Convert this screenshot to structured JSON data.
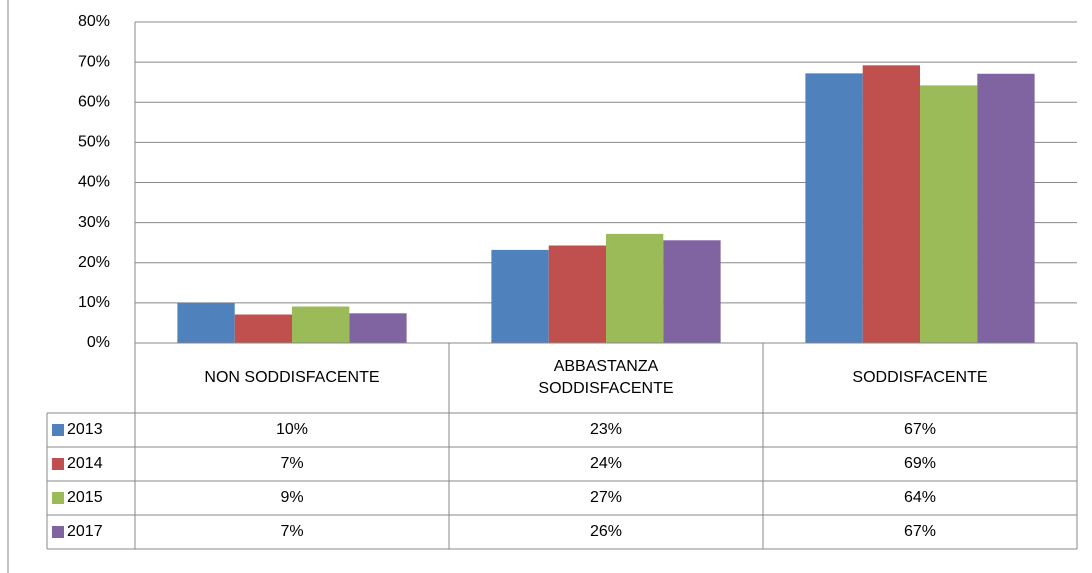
{
  "chart_data": {
    "type": "bar",
    "categories": [
      "NON SODDISFACENTE",
      "ABBASTANZA SODDISFACENTE",
      "SODDISFACENTE"
    ],
    "series": [
      {
        "name": "2013",
        "color": "#4f81bd",
        "values": [
          10,
          23.2,
          67.2
        ],
        "value_labels": [
          "10%",
          "23%",
          "67%"
        ]
      },
      {
        "name": "2014",
        "color": "#c0504d",
        "values": [
          7.1,
          24.3,
          69.2
        ],
        "value_labels": [
          "7%",
          "24%",
          "69%"
        ]
      },
      {
        "name": "2015",
        "color": "#9bbb59",
        "values": [
          9.1,
          27.2,
          64.2
        ],
        "value_labels": [
          "9%",
          "27%",
          "64%"
        ]
      },
      {
        "name": "2017",
        "color": "#8064a2",
        "values": [
          7.4,
          25.6,
          67.1
        ],
        "value_labels": [
          "7%",
          "26%",
          "67%"
        ]
      }
    ],
    "ylim": [
      0,
      80
    ],
    "yticks": [
      {
        "value": 0,
        "label": "0%"
      },
      {
        "value": 10,
        "label": "10%"
      },
      {
        "value": 20,
        "label": "20%"
      },
      {
        "value": 30,
        "label": "30%"
      },
      {
        "value": 40,
        "label": "40%"
      },
      {
        "value": 50,
        "label": "50%"
      },
      {
        "value": 60,
        "label": "60%"
      },
      {
        "value": 70,
        "label": "70%"
      },
      {
        "value": 80,
        "label": "80%"
      }
    ],
    "grid": true
  }
}
